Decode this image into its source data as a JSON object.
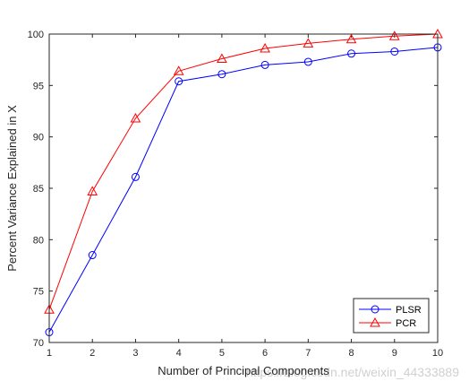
{
  "chart_data": {
    "type": "line",
    "x": [
      1,
      2,
      3,
      4,
      5,
      6,
      7,
      8,
      9,
      10
    ],
    "series": [
      {
        "name": "PLSR",
        "color": "#0000ff",
        "marker": "circle",
        "values": [
          71.0,
          78.5,
          86.1,
          95.4,
          96.1,
          97.0,
          97.3,
          98.1,
          98.3,
          98.7
        ]
      },
      {
        "name": "PCR",
        "color": "#ff0000",
        "marker": "triangle",
        "values": [
          73.2,
          84.7,
          91.8,
          96.4,
          97.6,
          98.6,
          99.1,
          99.5,
          99.8,
          100.0
        ]
      }
    ],
    "xlabel": "Number of Principal Components",
    "ylabel": "Percent Variance Explained in X",
    "xlim": [
      1,
      10
    ],
    "ylim": [
      70,
      100
    ],
    "xticks": [
      "1",
      "2",
      "3",
      "4",
      "5",
      "6",
      "7",
      "8",
      "9",
      "10"
    ],
    "yticks": [
      "70",
      "75",
      "80",
      "85",
      "90",
      "95",
      "100"
    ],
    "grid": false,
    "legend_position": "bottom-right"
  },
  "watermark": "https://blog.csdn.net/weixin_44333889"
}
